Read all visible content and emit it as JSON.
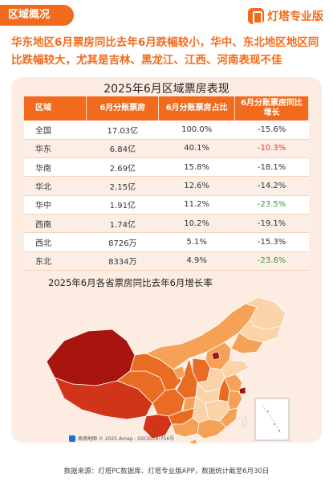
{
  "header": {
    "section_tag": "区域概况",
    "brand_name": "灯塔专业版"
  },
  "headline": "华东地区6月票房同比去年6月跌幅较小，华中、东北地区地区同比跌幅较大，尤其是吉林、黑龙江、江西、河南表现不佳",
  "table": {
    "title": "2025年6月区域票房表现",
    "columns": [
      "区域",
      "6月分账票房",
      "6月分账票房占比",
      "6月分账票房同比增长"
    ],
    "rows": [
      {
        "region": "全国",
        "box_office": "17.03亿",
        "share": "100.0%",
        "yoy": "-15.6%",
        "color": "#333333"
      },
      {
        "region": "华东",
        "box_office": "6.84亿",
        "share": "40.1%",
        "yoy": "-10.3%",
        "color": "#e03a2d"
      },
      {
        "region": "华南",
        "box_office": "2.69亿",
        "share": "15.8%",
        "yoy": "-18.1%",
        "color": "#333333"
      },
      {
        "region": "华北",
        "box_office": "2.15亿",
        "share": "12.6%",
        "yoy": "-14.2%",
        "color": "#333333"
      },
      {
        "region": "华中",
        "box_office": "1.91亿",
        "share": "11.2%",
        "yoy": "-23.5%",
        "color": "#2f9a3c"
      },
      {
        "region": "西南",
        "box_office": "1.74亿",
        "share": "10.2%",
        "yoy": "-19.1%",
        "color": "#333333"
      },
      {
        "region": "西北",
        "box_office": "8726万",
        "share": "5.1%",
        "yoy": "-15.3%",
        "color": "#333333"
      },
      {
        "region": "东北",
        "box_office": "8334万",
        "share": "4.9%",
        "yoy": "-23.6%",
        "color": "#2f9a3c"
      }
    ]
  },
  "map": {
    "title": "2025年6月各省票房同比去年6月增长率",
    "credit": "高德地图 © 2025 Amap - GS(2019)756号",
    "colors": {
      "dark": "#a8150f",
      "deep": "#d0351a",
      "mid": "#ea6c24",
      "light": "#f5a257",
      "pale": "#fbd3a8"
    }
  },
  "footer": "数据来源：灯塔PC数据库、灯塔专业版APP，数据统计截至6月30日",
  "accent_color": "#f26b1d"
}
